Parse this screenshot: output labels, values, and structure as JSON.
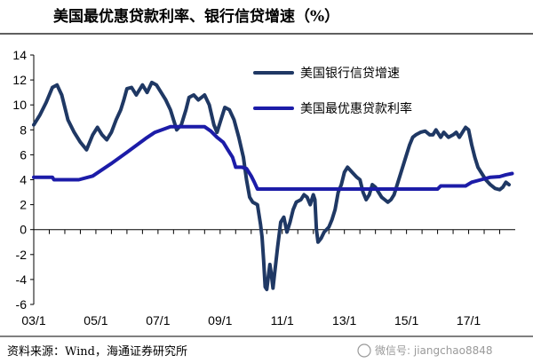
{
  "chart_data": {
    "type": "line",
    "title": "美国最优惠贷款利率、银行信贷增速（%）",
    "xlabel": "",
    "ylabel": "",
    "ylim": [
      -6,
      14
    ],
    "y_ticks": [
      "14",
      "12",
      "10",
      "8",
      "6",
      "4",
      "2",
      "0",
      "-2",
      "-4",
      "-6"
    ],
    "x_ticks": [
      "03/1",
      "05/1",
      "07/1",
      "09/1",
      "11/1",
      "13/1",
      "15/1",
      "17/1"
    ],
    "xlim": [
      2003.0,
      2018.5
    ],
    "legend_position": "top-right",
    "grid": false,
    "series": [
      {
        "name": "美国银行信贷增速",
        "color": "#1f3864",
        "points": [
          [
            2003.0,
            8.4
          ],
          [
            2003.2,
            9.2
          ],
          [
            2003.4,
            10.2
          ],
          [
            2003.6,
            11.4
          ],
          [
            2003.75,
            11.6
          ],
          [
            2003.9,
            10.8
          ],
          [
            2004.1,
            8.8
          ],
          [
            2004.3,
            7.8
          ],
          [
            2004.5,
            7.0
          ],
          [
            2004.7,
            6.4
          ],
          [
            2004.9,
            7.6
          ],
          [
            2005.05,
            8.2
          ],
          [
            2005.2,
            7.6
          ],
          [
            2005.35,
            7.2
          ],
          [
            2005.5,
            7.8
          ],
          [
            2005.65,
            8.8
          ],
          [
            2005.8,
            9.6
          ],
          [
            2005.9,
            10.4
          ],
          [
            2006.0,
            11.3
          ],
          [
            2006.15,
            11.4
          ],
          [
            2006.3,
            10.8
          ],
          [
            2006.5,
            11.6
          ],
          [
            2006.65,
            11.0
          ],
          [
            2006.8,
            11.8
          ],
          [
            2006.95,
            11.6
          ],
          [
            2007.1,
            11.0
          ],
          [
            2007.25,
            10.4
          ],
          [
            2007.4,
            9.6
          ],
          [
            2007.5,
            8.8
          ],
          [
            2007.6,
            8.0
          ],
          [
            2007.75,
            8.4
          ],
          [
            2007.9,
            9.6
          ],
          [
            2008.0,
            10.6
          ],
          [
            2008.15,
            10.8
          ],
          [
            2008.3,
            10.4
          ],
          [
            2008.5,
            10.8
          ],
          [
            2008.65,
            10.0
          ],
          [
            2008.8,
            8.4
          ],
          [
            2008.9,
            7.8
          ],
          [
            2009.0,
            8.6
          ],
          [
            2009.15,
            9.8
          ],
          [
            2009.3,
            9.6
          ],
          [
            2009.45,
            8.8
          ],
          [
            2009.6,
            7.4
          ],
          [
            2009.75,
            5.8
          ],
          [
            2009.85,
            4.0
          ],
          [
            2009.95,
            2.6
          ],
          [
            2010.05,
            2.2
          ],
          [
            2010.2,
            2.0
          ],
          [
            2010.3,
            0.4
          ],
          [
            2010.35,
            -0.6
          ],
          [
            2010.4,
            -2.5
          ],
          [
            2010.45,
            -4.6
          ],
          [
            2010.5,
            -4.8
          ],
          [
            2010.55,
            -3.8
          ],
          [
            2010.6,
            -2.8
          ],
          [
            2010.65,
            -3.6
          ],
          [
            2010.7,
            -4.7
          ],
          [
            2010.75,
            -3.6
          ],
          [
            2010.85,
            -1.4
          ],
          [
            2010.95,
            0.6
          ],
          [
            2011.05,
            1.0
          ],
          [
            2011.15,
            -0.2
          ],
          [
            2011.25,
            0.6
          ],
          [
            2011.35,
            1.6
          ],
          [
            2011.45,
            2.2
          ],
          [
            2011.6,
            2.4
          ],
          [
            2011.7,
            2.8
          ],
          [
            2011.8,
            2.6
          ],
          [
            2011.9,
            2.0
          ],
          [
            2012.0,
            2.8
          ],
          [
            2012.05,
            2.4
          ],
          [
            2012.1,
            0.0
          ],
          [
            2012.15,
            -1.0
          ],
          [
            2012.25,
            -0.7
          ],
          [
            2012.35,
            -0.2
          ],
          [
            2012.5,
            0.2
          ],
          [
            2012.6,
            0.8
          ],
          [
            2012.7,
            1.6
          ],
          [
            2012.8,
            3.0
          ],
          [
            2012.9,
            3.6
          ],
          [
            2013.0,
            4.6
          ],
          [
            2013.1,
            5.0
          ],
          [
            2013.25,
            4.6
          ],
          [
            2013.4,
            4.2
          ],
          [
            2013.5,
            4.0
          ],
          [
            2013.6,
            3.0
          ],
          [
            2013.7,
            2.4
          ],
          [
            2013.8,
            2.8
          ],
          [
            2013.9,
            3.6
          ],
          [
            2014.0,
            3.4
          ],
          [
            2014.1,
            3.0
          ],
          [
            2014.2,
            2.6
          ],
          [
            2014.3,
            2.4
          ],
          [
            2014.4,
            2.2
          ],
          [
            2014.5,
            2.4
          ],
          [
            2014.6,
            2.8
          ],
          [
            2014.7,
            3.6
          ],
          [
            2014.8,
            4.4
          ],
          [
            2014.9,
            5.2
          ],
          [
            2015.0,
            6.0
          ],
          [
            2015.1,
            6.8
          ],
          [
            2015.2,
            7.4
          ],
          [
            2015.3,
            7.6
          ],
          [
            2015.45,
            7.8
          ],
          [
            2015.6,
            7.9
          ],
          [
            2015.75,
            7.6
          ],
          [
            2015.85,
            7.6
          ],
          [
            2015.95,
            8.0
          ],
          [
            2016.1,
            7.4
          ],
          [
            2016.2,
            7.8
          ],
          [
            2016.35,
            7.4
          ],
          [
            2016.5,
            7.6
          ],
          [
            2016.6,
            7.8
          ],
          [
            2016.7,
            7.4
          ],
          [
            2016.8,
            7.8
          ],
          [
            2016.9,
            8.2
          ],
          [
            2017.0,
            8.0
          ],
          [
            2017.1,
            6.8
          ],
          [
            2017.2,
            5.8
          ],
          [
            2017.3,
            5.0
          ],
          [
            2017.4,
            4.6
          ],
          [
            2017.55,
            4.0
          ],
          [
            2017.7,
            3.6
          ],
          [
            2017.85,
            3.3
          ],
          [
            2018.0,
            3.2
          ],
          [
            2018.1,
            3.4
          ],
          [
            2018.2,
            3.8
          ],
          [
            2018.3,
            3.6
          ]
        ]
      },
      {
        "name": "美国最优惠贷款利率",
        "color": "#1c1ca8",
        "points": [
          [
            2003.0,
            4.2
          ],
          [
            2003.6,
            4.2
          ],
          [
            2003.65,
            4.0
          ],
          [
            2004.45,
            4.0
          ],
          [
            2004.9,
            4.3
          ],
          [
            2005.5,
            5.3
          ],
          [
            2006.0,
            6.2
          ],
          [
            2006.6,
            7.3
          ],
          [
            2006.9,
            7.8
          ],
          [
            2007.4,
            8.25
          ],
          [
            2008.0,
            8.25
          ],
          [
            2008.5,
            8.25
          ],
          [
            2008.7,
            7.9
          ],
          [
            2008.9,
            7.4
          ],
          [
            2009.1,
            7.0
          ],
          [
            2009.25,
            6.4
          ],
          [
            2009.4,
            5.8
          ],
          [
            2009.5,
            5.0
          ],
          [
            2009.7,
            5.0
          ],
          [
            2009.85,
            4.9
          ],
          [
            2010.0,
            4.3
          ],
          [
            2010.1,
            3.8
          ],
          [
            2010.2,
            3.25
          ],
          [
            2016.0,
            3.25
          ],
          [
            2016.1,
            3.5
          ],
          [
            2016.9,
            3.5
          ],
          [
            2017.1,
            3.8
          ],
          [
            2017.4,
            4.0
          ],
          [
            2017.7,
            4.2
          ],
          [
            2018.0,
            4.25
          ],
          [
            2018.2,
            4.4
          ],
          [
            2018.4,
            4.5
          ]
        ]
      }
    ]
  },
  "source_text": "资料来源：Wind，海通证券研究所",
  "watermark_text": "微信号: jiangchao8848"
}
